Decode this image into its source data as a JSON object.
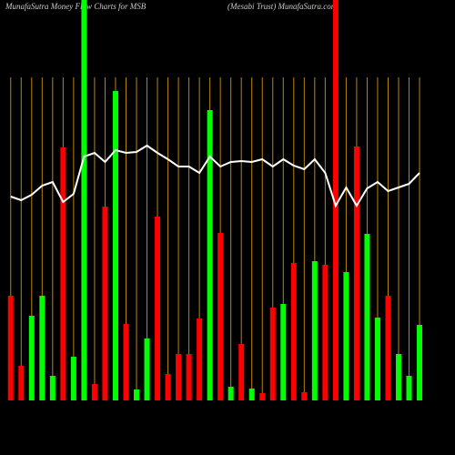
{
  "chart_data": {
    "type": "bar",
    "title": "MunafaSutra  Money Flow  Charts for MSB",
    "subtitle": "(Mesabi   Trust) MunafaSutra.com",
    "categories": [
      null,
      null,
      null,
      null,
      null,
      null,
      null,
      null,
      null,
      null,
      null,
      null,
      null,
      null,
      null,
      null,
      null,
      null,
      null,
      null,
      null,
      null,
      null,
      null,
      null,
      null,
      null,
      null,
      null,
      null,
      null,
      null,
      null,
      null,
      null,
      null,
      null,
      null,
      null,
      null
    ],
    "ylim": [
      0,
      440
    ],
    "up_color": "#00ff00",
    "down_color": "#ff0000",
    "line_color": "#ffffff",
    "grid_color": "#b8860b",
    "grid": true,
    "series": [
      {
        "direction": [
          "down",
          "down",
          "up",
          "up",
          "up",
          "down",
          "up",
          "up",
          "down",
          "down",
          "up",
          "down",
          "up",
          "up",
          "down",
          "down",
          "down",
          "down",
          "down",
          "up",
          "down",
          "up",
          "down",
          "up",
          "down",
          "down",
          "up",
          "down",
          "down",
          "up",
          "down",
          "down",
          "up",
          "down",
          "up",
          "up",
          "down",
          "up",
          "up",
          "up"
        ],
        "values": [
          115,
          38,
          93,
          115,
          27,
          278,
          48,
          460,
          18,
          213,
          340,
          84,
          12,
          68,
          202,
          29,
          51,
          51,
          90,
          319,
          184,
          15,
          62,
          13,
          8,
          102,
          106,
          151,
          9,
          153,
          149,
          460,
          141,
          279,
          183,
          91,
          115,
          51,
          27,
          83
        ]
      },
      {
        "line_values": [
          224,
          220,
          226,
          236,
          240,
          218,
          227,
          268,
          272,
          262,
          275,
          272,
          273,
          280,
          272,
          265,
          257,
          257,
          250,
          268,
          257,
          262,
          263,
          262,
          265,
          257,
          265,
          258,
          254,
          265,
          250,
          214,
          234,
          214,
          233,
          240,
          230,
          234,
          238,
          250
        ]
      }
    ]
  }
}
